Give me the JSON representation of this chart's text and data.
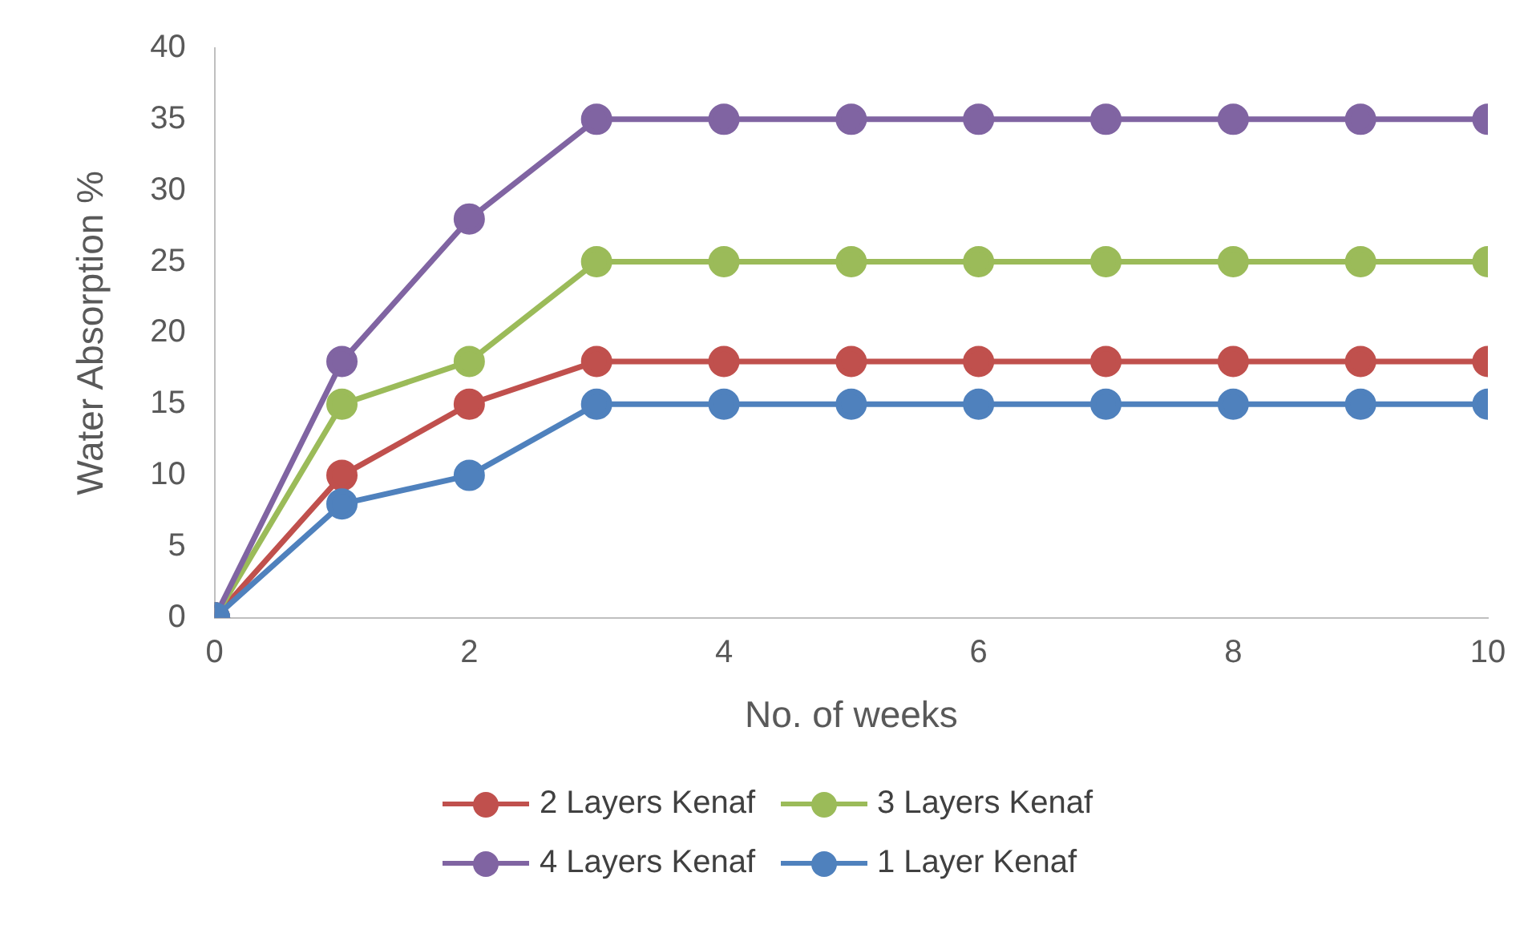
{
  "chart_data": {
    "type": "line",
    "xlabel": "No. of weeks",
    "ylabel": "Water Absorption %",
    "x": [
      0,
      1,
      2,
      3,
      4,
      5,
      6,
      7,
      8,
      9,
      10
    ],
    "series": [
      {
        "name": "2 Layers Kenaf",
        "color": "#c0504d",
        "values": [
          0,
          10,
          15,
          18,
          18,
          18,
          18,
          18,
          18,
          18,
          18
        ]
      },
      {
        "name": "3 Layers Kenaf",
        "color": "#9bbb59",
        "values": [
          0,
          15,
          18,
          25,
          25,
          25,
          25,
          25,
          25,
          25,
          25
        ]
      },
      {
        "name": "4 Layers Kenaf",
        "color": "#8064a2",
        "values": [
          0,
          18,
          28,
          35,
          35,
          35,
          35,
          35,
          35,
          35,
          35
        ]
      },
      {
        "name": "1 Layer Kenaf",
        "color": "#4f81bd",
        "values": [
          0,
          8,
          10,
          15,
          15,
          15,
          15,
          15,
          15,
          15,
          15
        ]
      }
    ],
    "xlim": [
      0,
      10
    ],
    "xticks": [
      0,
      2,
      4,
      6,
      8,
      10
    ],
    "ylim": [
      0,
      40
    ],
    "yticks": [
      0,
      5,
      10,
      15,
      20,
      25,
      30,
      35,
      40
    ],
    "grid": false,
    "legend": "bottom",
    "marker": "circle",
    "line_style": "solid"
  }
}
